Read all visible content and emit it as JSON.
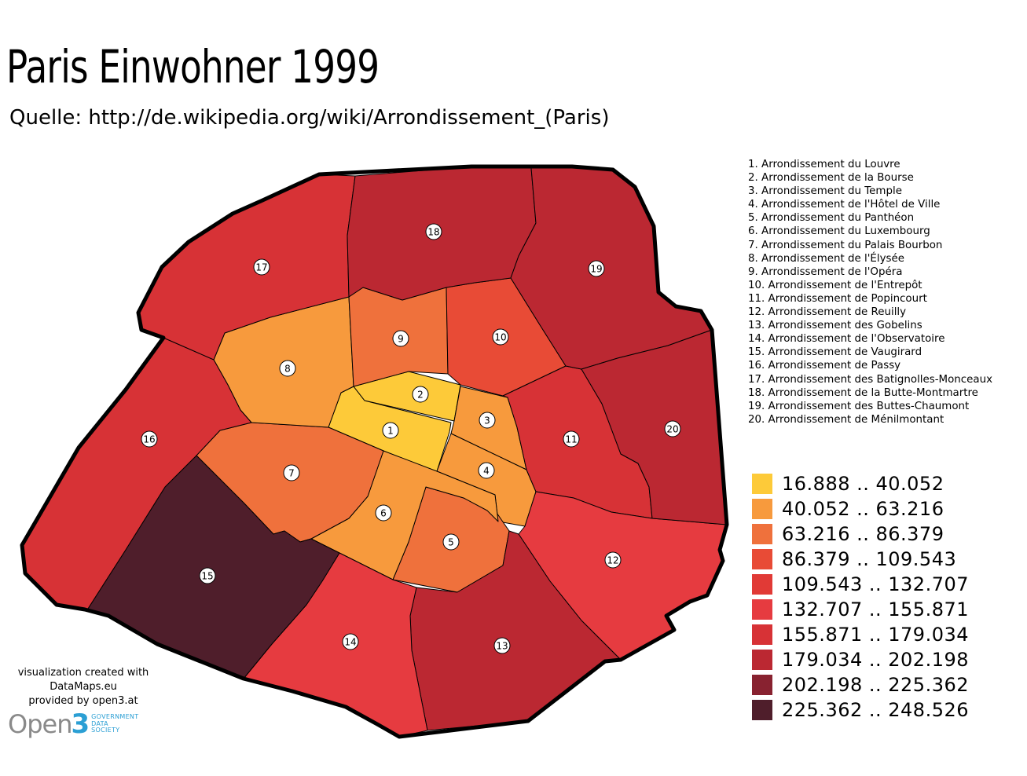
{
  "title": "Paris Einwohner 1999",
  "subtitle": "Quelle: http://de.wikipedia.org/wiki/Arrondissement_(Paris)",
  "arrondissements": [
    {
      "no": "1",
      "name": "1. Arrondissement du Louvre",
      "color": "#fdca39"
    },
    {
      "no": "2",
      "name": "2. Arrondissement de la Bourse",
      "color": "#fdca39"
    },
    {
      "no": "3",
      "name": "3. Arrondissement du Temple",
      "color": "#f79a3d"
    },
    {
      "no": "4",
      "name": "4. Arrondissement de l'Hôtel de Ville",
      "color": "#f79a3d"
    },
    {
      "no": "5",
      "name": "5. Arrondissement du Panthéon",
      "color": "#ef713c"
    },
    {
      "no": "6",
      "name": "6. Arrondissement du Luxembourg",
      "color": "#f79a3d"
    },
    {
      "no": "7",
      "name": "7. Arrondissement du Palais Bourbon",
      "color": "#ef713c"
    },
    {
      "no": "8",
      "name": "8. Arrondissement de l'Élysée",
      "color": "#f79a3d"
    },
    {
      "no": "9",
      "name": "9. Arrondissement de l'Opéra",
      "color": "#ef713c"
    },
    {
      "no": "10",
      "name": "10. Arrondissement de l'Entrepôt",
      "color": "#e84b36"
    },
    {
      "no": "11",
      "name": "11. Arrondissement de Popincourt",
      "color": "#d73236"
    },
    {
      "no": "12",
      "name": "12. Arrondissement de Reuilly",
      "color": "#e63b40"
    },
    {
      "no": "13",
      "name": "13. Arrondissement des Gobelins",
      "color": "#bb2832"
    },
    {
      "no": "14",
      "name": "14. Arrondissement de l'Observatoire",
      "color": "#e63b40"
    },
    {
      "no": "15",
      "name": "15. Arrondissement de Vaugirard",
      "color": "#4f1e2b"
    },
    {
      "no": "16",
      "name": "16. Arrondissement de Passy",
      "color": "#d73236"
    },
    {
      "no": "17",
      "name": "17. Arrondissement des Batignolles-Monceaux",
      "color": "#d73236"
    },
    {
      "no": "18",
      "name": "18. Arrondissement de la Butte-Montmartre",
      "color": "#bb2832"
    },
    {
      "no": "19",
      "name": "19. Arrondissement des Buttes-Chaumont",
      "color": "#bb2832"
    },
    {
      "no": "20",
      "name": "20. Arrondissement de Ménilmontant",
      "color": "#bb2832"
    }
  ],
  "legend": [
    {
      "label": "16.888 .. 40.052",
      "color": "#fdca39"
    },
    {
      "label": "40.052 .. 63.216",
      "color": "#f79a3d"
    },
    {
      "label": "63.216 .. 86.379",
      "color": "#ef713c"
    },
    {
      "label": "86.379 .. 109.543",
      "color": "#e84b36"
    },
    {
      "label": "109.543 .. 132.707",
      "color": "#e13a36"
    },
    {
      "label": "132.707 .. 155.871",
      "color": "#e63b40"
    },
    {
      "label": "155.871 .. 179.034",
      "color": "#d73236"
    },
    {
      "label": "179.034 .. 202.198",
      "color": "#bb2832"
    },
    {
      "label": "202.198 .. 225.362",
      "color": "#882230"
    },
    {
      "label": "225.362 .. 248.526",
      "color": "#4f1e2b"
    }
  ],
  "credits": {
    "line1": "visualization created with",
    "line2": "DataMaps.eu",
    "line3": "provided by open3.at",
    "logo_word": "Open",
    "logo_number": "3",
    "logo_sub1": "GOVERNMENT",
    "logo_sub2": "DATA",
    "logo_sub3": "SOCIETY"
  }
}
